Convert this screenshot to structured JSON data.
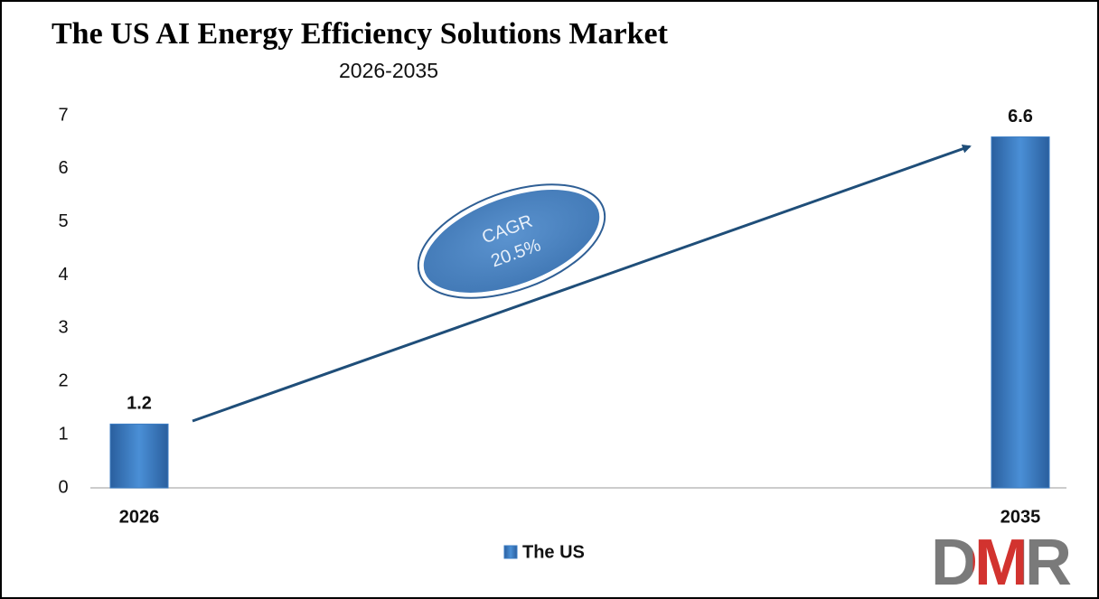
{
  "chart_data": {
    "type": "bar",
    "title": "The US AI Energy Efficiency Solutions Market",
    "subtitle": "2026-2035",
    "categories": [
      "2026",
      "2035"
    ],
    "series": [
      {
        "name": "The US",
        "color": "#3b7dc4",
        "values": [
          1.2,
          6.6
        ]
      }
    ],
    "ylim": [
      0,
      7
    ],
    "yticks": [
      0,
      1,
      2,
      3,
      4,
      5,
      6,
      7
    ],
    "grid": false,
    "annotation": [
      "CAGR",
      "20.5%"
    ],
    "legend": "bottom"
  },
  "logo": "DMR"
}
